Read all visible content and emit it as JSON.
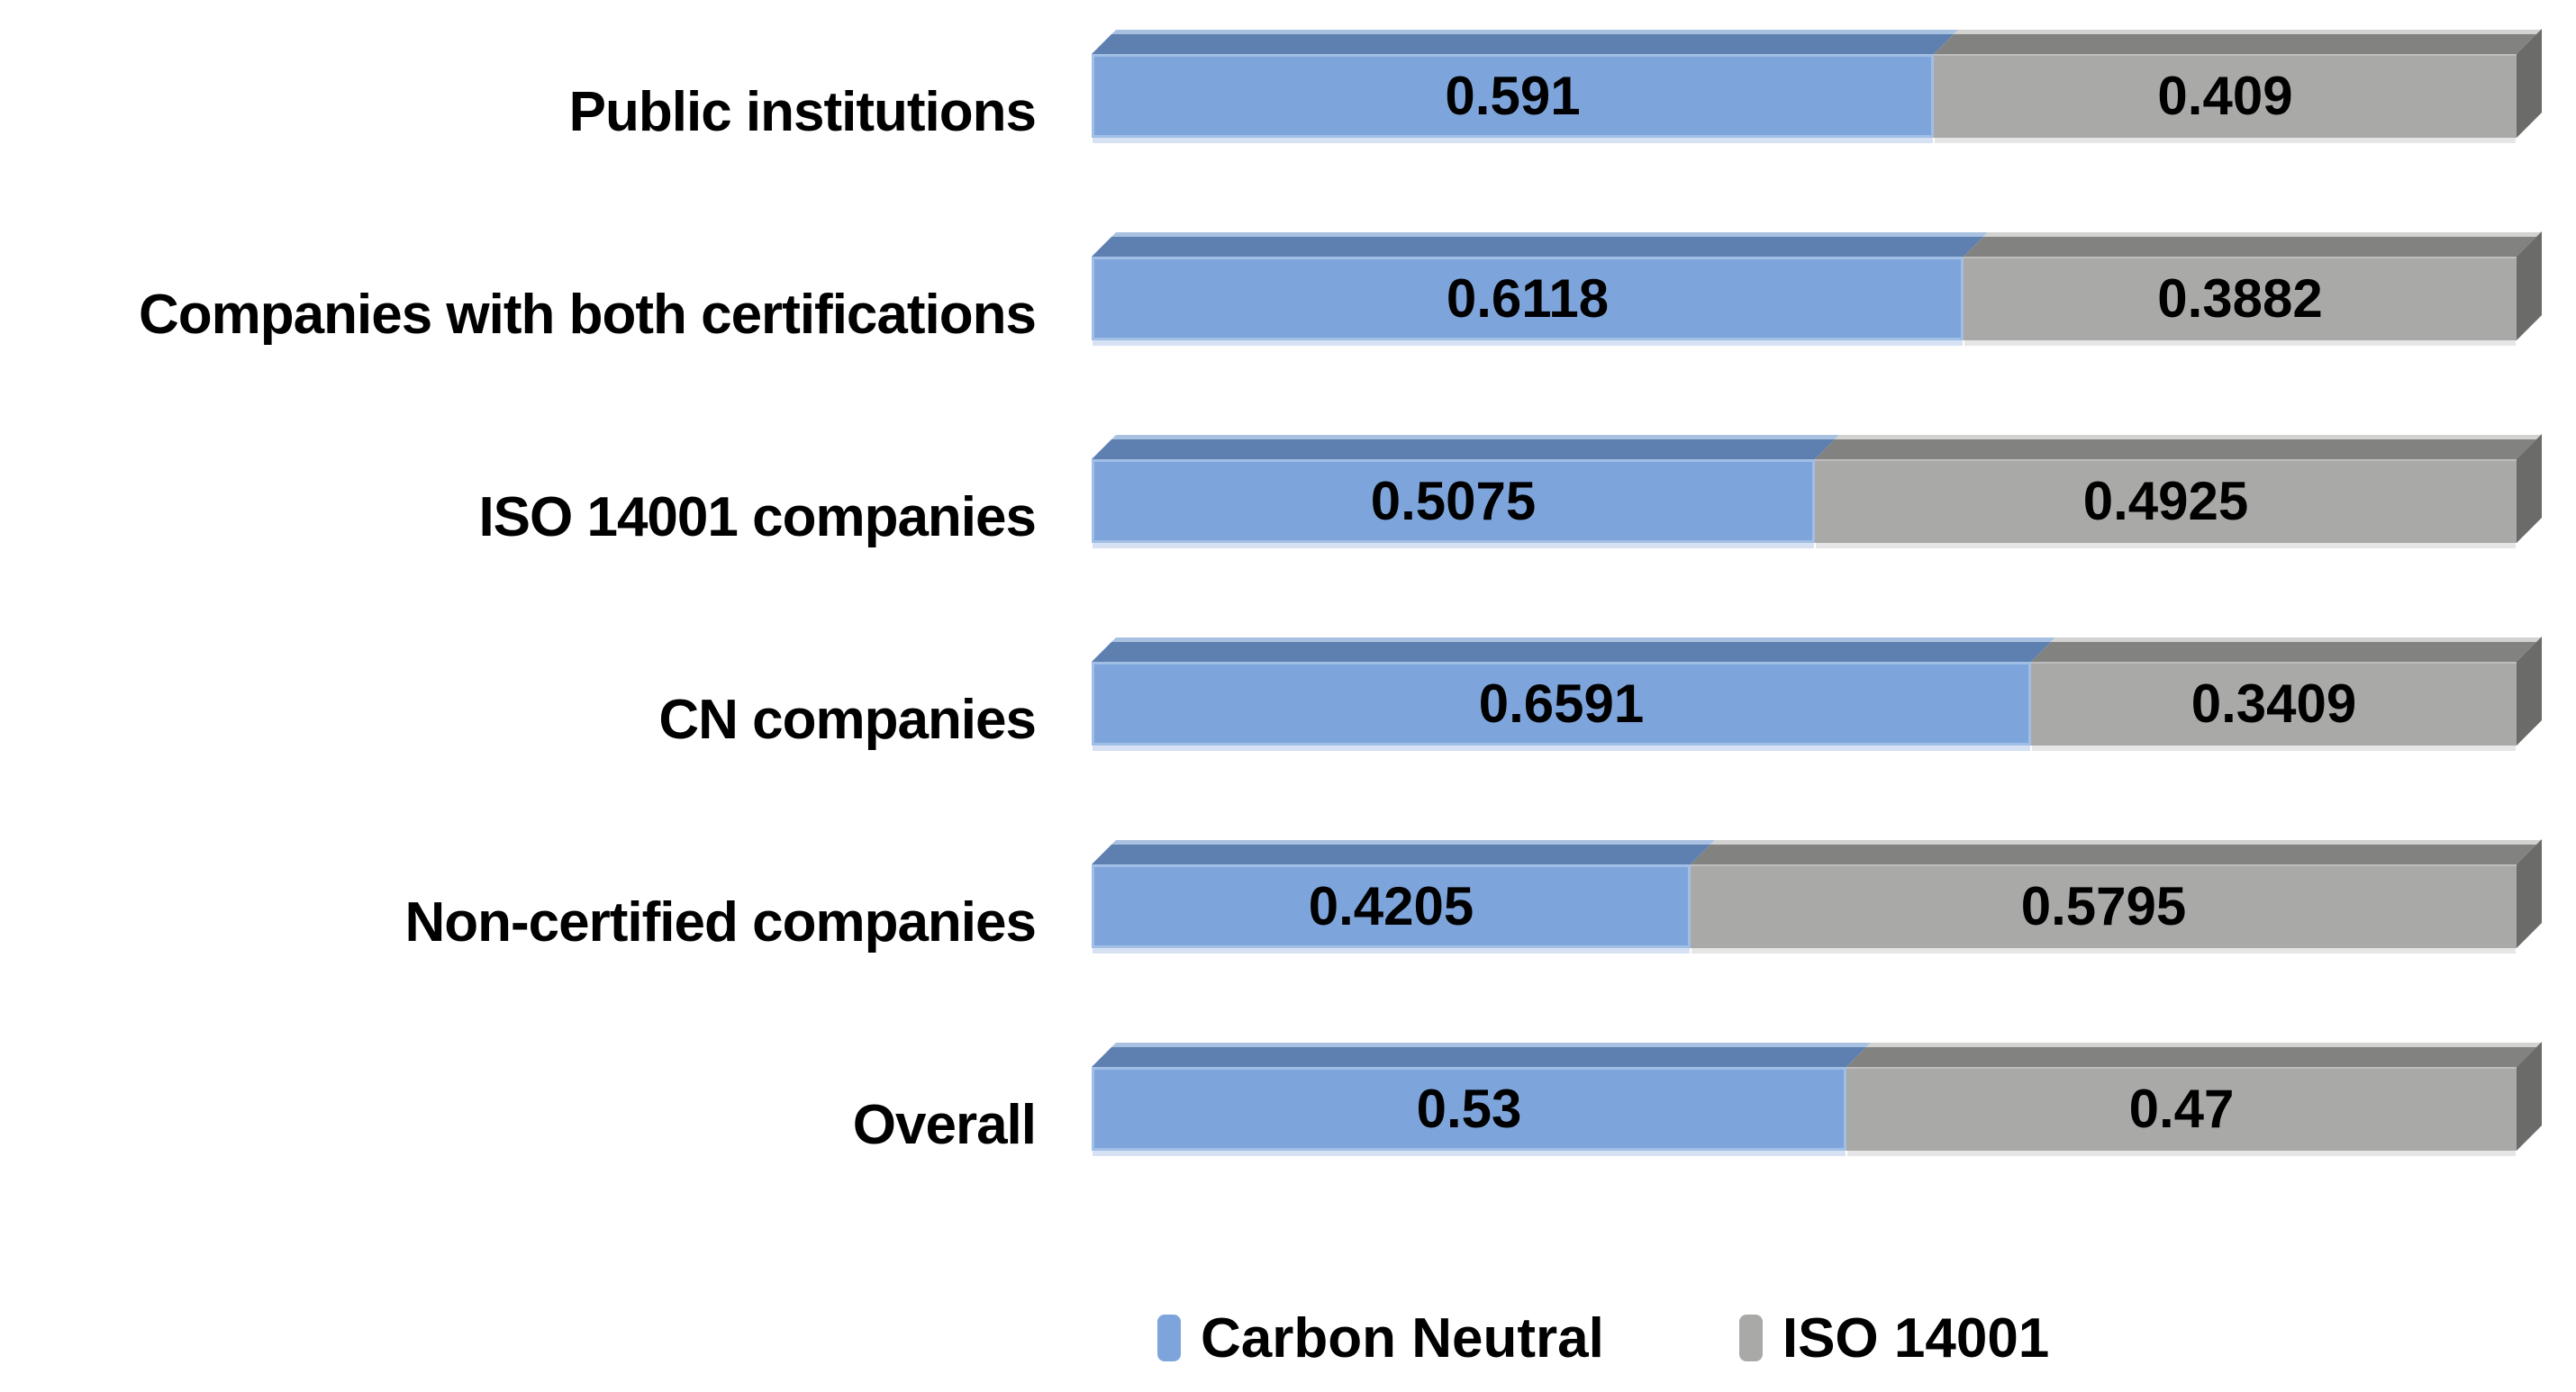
{
  "chart_data": {
    "type": "bar",
    "variant": "horizontal-stacked-3d",
    "title": "",
    "xlabel": "",
    "ylabel": "",
    "xlim": [
      0,
      1
    ],
    "grid": false,
    "legend_position": "bottom",
    "categories": [
      "Public institutions",
      "Companies with both certifications",
      "ISO 14001 companies",
      "CN companies",
      "Non-certified companies",
      "Overall"
    ],
    "series": [
      {
        "name": "Carbon Neutral",
        "color": "#7EA5DB",
        "values": [
          0.591,
          0.6118,
          0.5075,
          0.6591,
          0.4205,
          0.53
        ]
      },
      {
        "name": "ISO 14001",
        "color": "#A9A9A8",
        "values": [
          0.409,
          0.3882,
          0.4925,
          0.3409,
          0.5795,
          0.47
        ]
      }
    ],
    "value_labels": [
      [
        "0.591",
        "0.409"
      ],
      [
        "0.6118",
        "0.3882"
      ],
      [
        "0.5075",
        "0.4925"
      ],
      [
        "0.6591",
        "0.3409"
      ],
      [
        "0.4205",
        "0.5795"
      ],
      [
        "0.53",
        "0.47"
      ]
    ]
  },
  "colors": {
    "blue_front": "#7EA5DB",
    "blue_top": "#5E80B1",
    "blue_top_highlight": "#A9C1E0",
    "gray_front": "#A9A9A8",
    "gray_top": "#828281",
    "gray_top_highlight": "#D2D2D1",
    "gray_side": "#6B6B6A",
    "value_text": "#000000",
    "background": "#FFFFFF"
  },
  "legend": {
    "items": [
      {
        "label": "Carbon Neutral",
        "color": "#7EA5DB"
      },
      {
        "label": "ISO 14001",
        "color": "#A9A9A8"
      }
    ]
  }
}
